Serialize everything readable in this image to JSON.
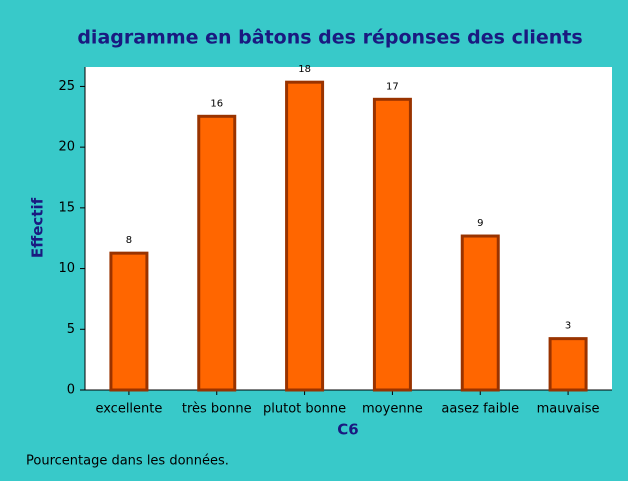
{
  "chart_data": {
    "type": "bar",
    "title": "diagramme en bâtons des réponses des clients",
    "xlabel": "C6",
    "ylabel": "Effectif",
    "categories": [
      "excellente",
      "très bonne",
      "plutot bonne",
      "moyenne",
      "aasez faible",
      "mauvaise"
    ],
    "values": [
      11.27,
      22.54,
      25.35,
      23.94,
      12.68,
      4.23
    ],
    "counts": [
      8,
      16,
      18,
      17,
      9,
      3
    ],
    "color": "#ff6600",
    "edge_color": "#993300",
    "ylim": [
      0,
      26.6
    ],
    "yticks": [
      0,
      5,
      10,
      15,
      20,
      25
    ],
    "grid": false,
    "footnote": "Pourcentage dans les données."
  }
}
